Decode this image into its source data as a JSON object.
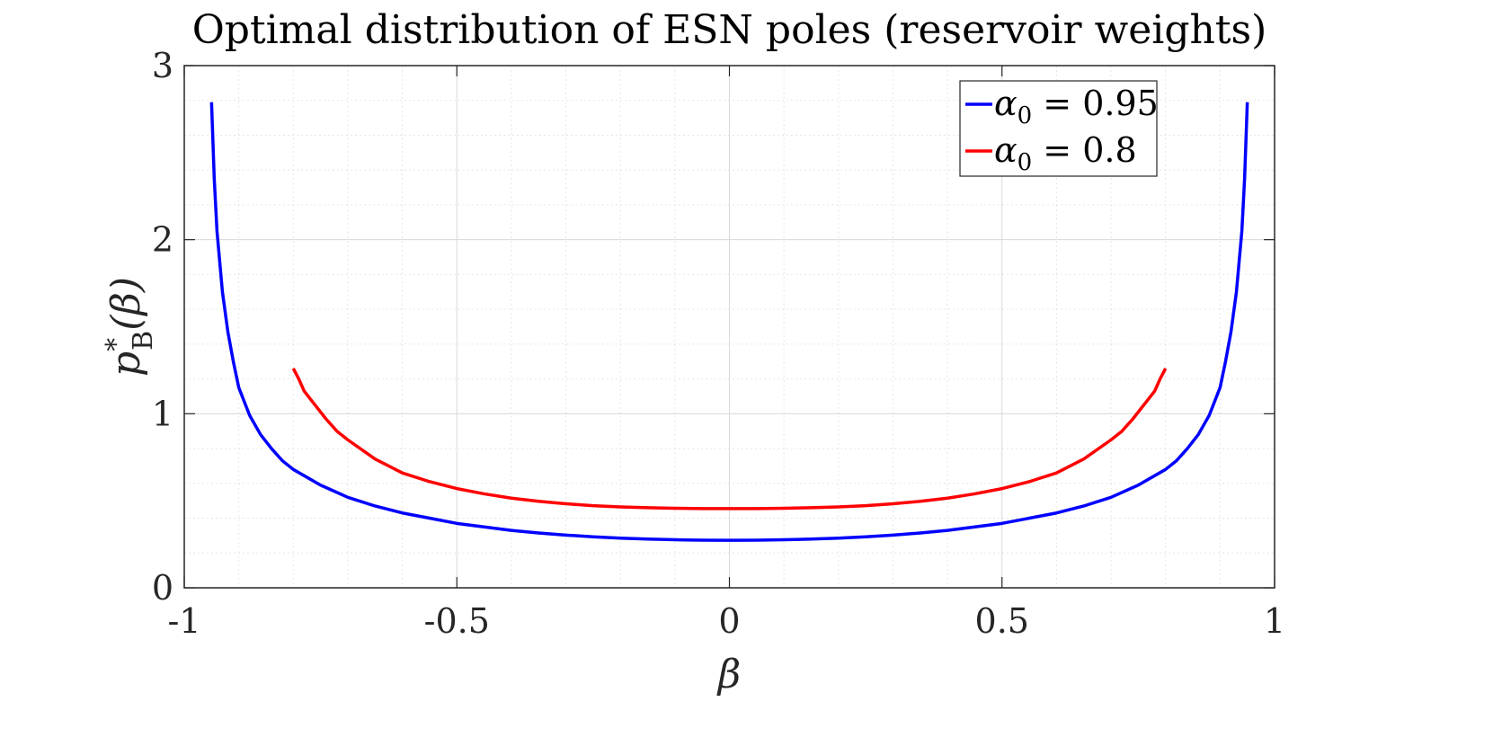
{
  "chart_data": {
    "type": "line",
    "title": "Optimal distribution of ESN poles (reservoir weights)",
    "xlabel": "β",
    "ylabel": "p*_B(β)",
    "ylabel_base": "p",
    "ylabel_sup": "*",
    "ylabel_sub": "B",
    "ylabel_arg": "(β)",
    "xlim": [
      -1,
      1
    ],
    "ylim": [
      0,
      3
    ],
    "xticks": [
      -1,
      -0.5,
      0,
      0.5,
      1
    ],
    "xtick_labels": [
      "-1",
      "-0.5",
      "0",
      "0.5",
      "1"
    ],
    "yticks": [
      0,
      1,
      2,
      3
    ],
    "ytick_labels": [
      "0",
      "1",
      "2",
      "3"
    ],
    "grid": true,
    "minor_grid": true,
    "legend_position": "top-right",
    "series": [
      {
        "name": "α0 = 0.95",
        "legend_symbol": "α",
        "legend_sub": "0",
        "legend_rest": " = 0.95",
        "color": "#0000ff",
        "x": [
          -0.95,
          -0.945,
          -0.94,
          -0.93,
          -0.92,
          -0.91,
          -0.9,
          -0.88,
          -0.86,
          -0.84,
          -0.82,
          -0.8,
          -0.75,
          -0.7,
          -0.65,
          -0.6,
          -0.55,
          -0.5,
          -0.45,
          -0.4,
          -0.35,
          -0.3,
          -0.25,
          -0.2,
          -0.15,
          -0.1,
          -0.05,
          0,
          0.05,
          0.1,
          0.15,
          0.2,
          0.25,
          0.3,
          0.35,
          0.4,
          0.45,
          0.5,
          0.55,
          0.6,
          0.65,
          0.7,
          0.75,
          0.8,
          0.82,
          0.84,
          0.86,
          0.88,
          0.9,
          0.91,
          0.92,
          0.93,
          0.94,
          0.945,
          0.95
        ],
        "values": [
          2.79,
          2.35,
          2.05,
          1.7,
          1.47,
          1.3,
          1.15,
          0.99,
          0.88,
          0.8,
          0.73,
          0.68,
          0.59,
          0.52,
          0.47,
          0.43,
          0.4,
          0.37,
          0.35,
          0.33,
          0.315,
          0.303,
          0.293,
          0.285,
          0.28,
          0.276,
          0.274,
          0.273,
          0.274,
          0.276,
          0.28,
          0.285,
          0.293,
          0.303,
          0.315,
          0.33,
          0.35,
          0.37,
          0.4,
          0.43,
          0.47,
          0.52,
          0.59,
          0.68,
          0.73,
          0.8,
          0.88,
          0.99,
          1.15,
          1.3,
          1.47,
          1.7,
          2.05,
          2.35,
          2.79
        ]
      },
      {
        "name": "α0 = 0.8",
        "legend_symbol": "α",
        "legend_sub": "0",
        "legend_rest": " = 0.8",
        "color": "#ff0000",
        "x": [
          -0.8,
          -0.79,
          -0.78,
          -0.76,
          -0.74,
          -0.72,
          -0.7,
          -0.65,
          -0.6,
          -0.55,
          -0.5,
          -0.45,
          -0.4,
          -0.35,
          -0.3,
          -0.25,
          -0.2,
          -0.15,
          -0.1,
          -0.05,
          0,
          0.05,
          0.1,
          0.15,
          0.2,
          0.25,
          0.3,
          0.35,
          0.4,
          0.45,
          0.5,
          0.55,
          0.6,
          0.65,
          0.7,
          0.72,
          0.74,
          0.76,
          0.78,
          0.79,
          0.8
        ],
        "values": [
          1.26,
          1.2,
          1.13,
          1.05,
          0.97,
          0.9,
          0.85,
          0.74,
          0.66,
          0.61,
          0.57,
          0.54,
          0.515,
          0.497,
          0.483,
          0.472,
          0.465,
          0.46,
          0.457,
          0.455,
          0.455,
          0.455,
          0.457,
          0.46,
          0.465,
          0.472,
          0.483,
          0.497,
          0.515,
          0.54,
          0.57,
          0.61,
          0.66,
          0.74,
          0.85,
          0.9,
          0.97,
          1.05,
          1.13,
          1.2,
          1.26
        ]
      }
    ]
  }
}
